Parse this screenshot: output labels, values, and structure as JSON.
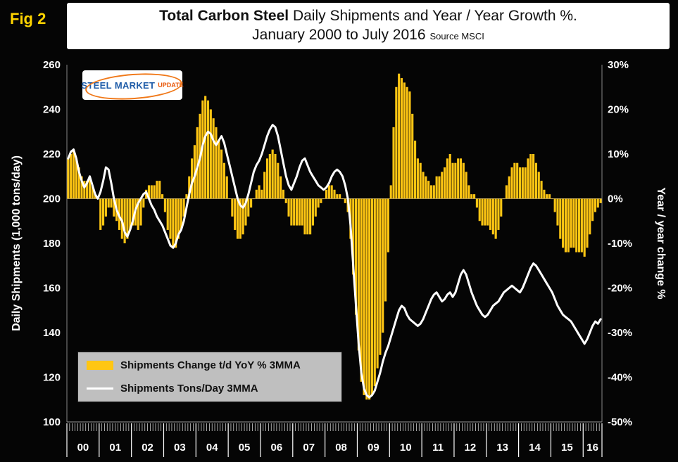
{
  "fig_label": "Fig 2",
  "title": {
    "bold": "Total Carbon Steel",
    "rest": " Daily Shipments and Year / Year Growth %.",
    "line2": "January 2000 to July 2016",
    "source": "Source MSCI"
  },
  "logo": {
    "word1": "STEEL",
    "word2": "MARKET",
    "word3": "UPDATE"
  },
  "left_axis": {
    "label": "Daily Shipments (1,000 tons/day)",
    "ticks": [
      260,
      240,
      220,
      200,
      180,
      160,
      140,
      120,
      100
    ]
  },
  "right_axis": {
    "label": "Year / year change %",
    "ticks": [
      "30%",
      "20%",
      "10%",
      "0%",
      "-10%",
      "-20%",
      "-30%",
      "-40%",
      "-50%"
    ],
    "tick_values": [
      30,
      20,
      10,
      0,
      -10,
      -20,
      -30,
      -40,
      -50
    ]
  },
  "x_axis": {
    "year_labels": [
      "00",
      "01",
      "02",
      "03",
      "04",
      "05",
      "06",
      "07",
      "08",
      "09",
      "10",
      "11",
      "12",
      "13",
      "14",
      "15",
      "16"
    ]
  },
  "legend": {
    "items": [
      {
        "swatch": "bar",
        "color": "#FFC613",
        "label": "Shipments Change t/d YoY % 3MMA"
      },
      {
        "swatch": "line",
        "color": "#FFFFFF",
        "label": "Shipments Tons/Day 3MMA"
      }
    ]
  },
  "colors": {
    "background": "#050505",
    "bar": "#FFC613",
    "line": "#FFFFFF",
    "fig_label": "#FFD400",
    "legend_bg": "#BFBFBF",
    "axis_text": "#FFFFFF"
  },
  "chart_data": {
    "type": "bar",
    "combo": true,
    "x_start": "2000-01",
    "x_end": "2016-07",
    "title": "Total Carbon Steel Daily Shipments and Year / Year Growth %. January 2000 to July 2016",
    "left_ylabel": "Daily Shipments (1,000 tons/day)",
    "right_ylabel": "Year / year change %",
    "left_ylim": [
      100,
      260
    ],
    "right_ylim": [
      -50,
      30
    ],
    "grid": false,
    "legend_position": "lower-left",
    "series": [
      {
        "name": "Shipments Change t/d YoY % 3MMA",
        "type": "bar",
        "axis": "right",
        "color": "#FFC613",
        "values": [
          9,
          10,
          11,
          9,
          7,
          5,
          4,
          4,
          5,
          3,
          1,
          0,
          -7,
          -6,
          -4,
          -2,
          -2,
          -4,
          -5,
          -7,
          -9,
          -10,
          -9,
          -7,
          -6,
          -6,
          -7,
          -6,
          -2,
          2,
          3,
          3,
          3,
          4,
          4,
          1,
          -3,
          -7,
          -9,
          -11,
          -11,
          -9,
          -7,
          -4,
          1,
          5,
          9,
          12,
          16,
          19,
          22,
          23,
          22,
          20,
          18,
          16,
          13,
          11,
          8,
          5,
          0,
          -4,
          -7,
          -9,
          -9,
          -8,
          -6,
          -4,
          -2,
          0,
          2,
          3,
          2,
          6,
          9,
          10,
          11,
          10,
          8,
          5,
          2,
          -1,
          -4,
          -6,
          -6,
          -6,
          -6,
          -6,
          -8,
          -8,
          -8,
          -6,
          -4,
          -2,
          -1,
          0,
          2,
          3,
          3,
          2,
          1,
          1,
          0,
          -1,
          -3,
          -9,
          -17,
          -26,
          -34,
          -41,
          -44,
          -45,
          -45,
          -44,
          -42,
          -38,
          -35,
          -30,
          -23,
          -12,
          3,
          16,
          25,
          28,
          27,
          26,
          25,
          24,
          19,
          13,
          9,
          8,
          6,
          5,
          4,
          3,
          3,
          5,
          5,
          6,
          7,
          9,
          10,
          8,
          8,
          9,
          9,
          8,
          6,
          3,
          1,
          1,
          -2,
          -5,
          -6,
          -6,
          -6,
          -7,
          -8,
          -9,
          -7,
          -4,
          0,
          3,
          5,
          7,
          8,
          8,
          7,
          7,
          7,
          9,
          10,
          10,
          8,
          6,
          4,
          2,
          1,
          1,
          0,
          -3,
          -6,
          -9,
          -11,
          -12,
          -12,
          -11,
          -11,
          -12,
          -12,
          -12,
          -13,
          -11,
          -8,
          -5,
          -3,
          -2,
          -1
        ]
      },
      {
        "name": "Shipments Tons/Day 3MMA",
        "type": "line",
        "axis": "left",
        "color": "#FFFFFF",
        "values": [
          218,
          221,
          222,
          218,
          212,
          208,
          205,
          207,
          210,
          206,
          202,
          200,
          203,
          208,
          214,
          213,
          207,
          200,
          195,
          192,
          190,
          185,
          183,
          186,
          190,
          195,
          198,
          200,
          202,
          203,
          200,
          197,
          195,
          192,
          190,
          188,
          185,
          182,
          179,
          178,
          180,
          184,
          186,
          190,
          196,
          202,
          207,
          210,
          214,
          218,
          224,
          228,
          230,
          229,
          226,
          224,
          226,
          228,
          225,
          220,
          215,
          210,
          205,
          200,
          197,
          196,
          198,
          202,
          207,
          212,
          215,
          217,
          220,
          224,
          228,
          231,
          233,
          232,
          228,
          222,
          216,
          210,
          206,
          204,
          207,
          210,
          214,
          217,
          218,
          215,
          212,
          210,
          208,
          206,
          205,
          204,
          205,
          207,
          210,
          212,
          213,
          212,
          210,
          206,
          200,
          188,
          170,
          152,
          135,
          122,
          115,
          112,
          111,
          112,
          114,
          118,
          122,
          127,
          131,
          134,
          138,
          142,
          146,
          150,
          152,
          151,
          148,
          146,
          145,
          144,
          143,
          144,
          146,
          149,
          152,
          155,
          157,
          158,
          156,
          154,
          155,
          157,
          158,
          156,
          158,
          162,
          166,
          168,
          166,
          162,
          158,
          155,
          152,
          150,
          148,
          147,
          148,
          150,
          152,
          153,
          154,
          156,
          158,
          159,
          160,
          161,
          160,
          159,
          158,
          160,
          163,
          166,
          169,
          171,
          170,
          168,
          166,
          164,
          162,
          160,
          158,
          155,
          152,
          150,
          148,
          147,
          146,
          145,
          143,
          141,
          139,
          137,
          135,
          137,
          140,
          143,
          145,
          144,
          146
        ]
      }
    ]
  }
}
